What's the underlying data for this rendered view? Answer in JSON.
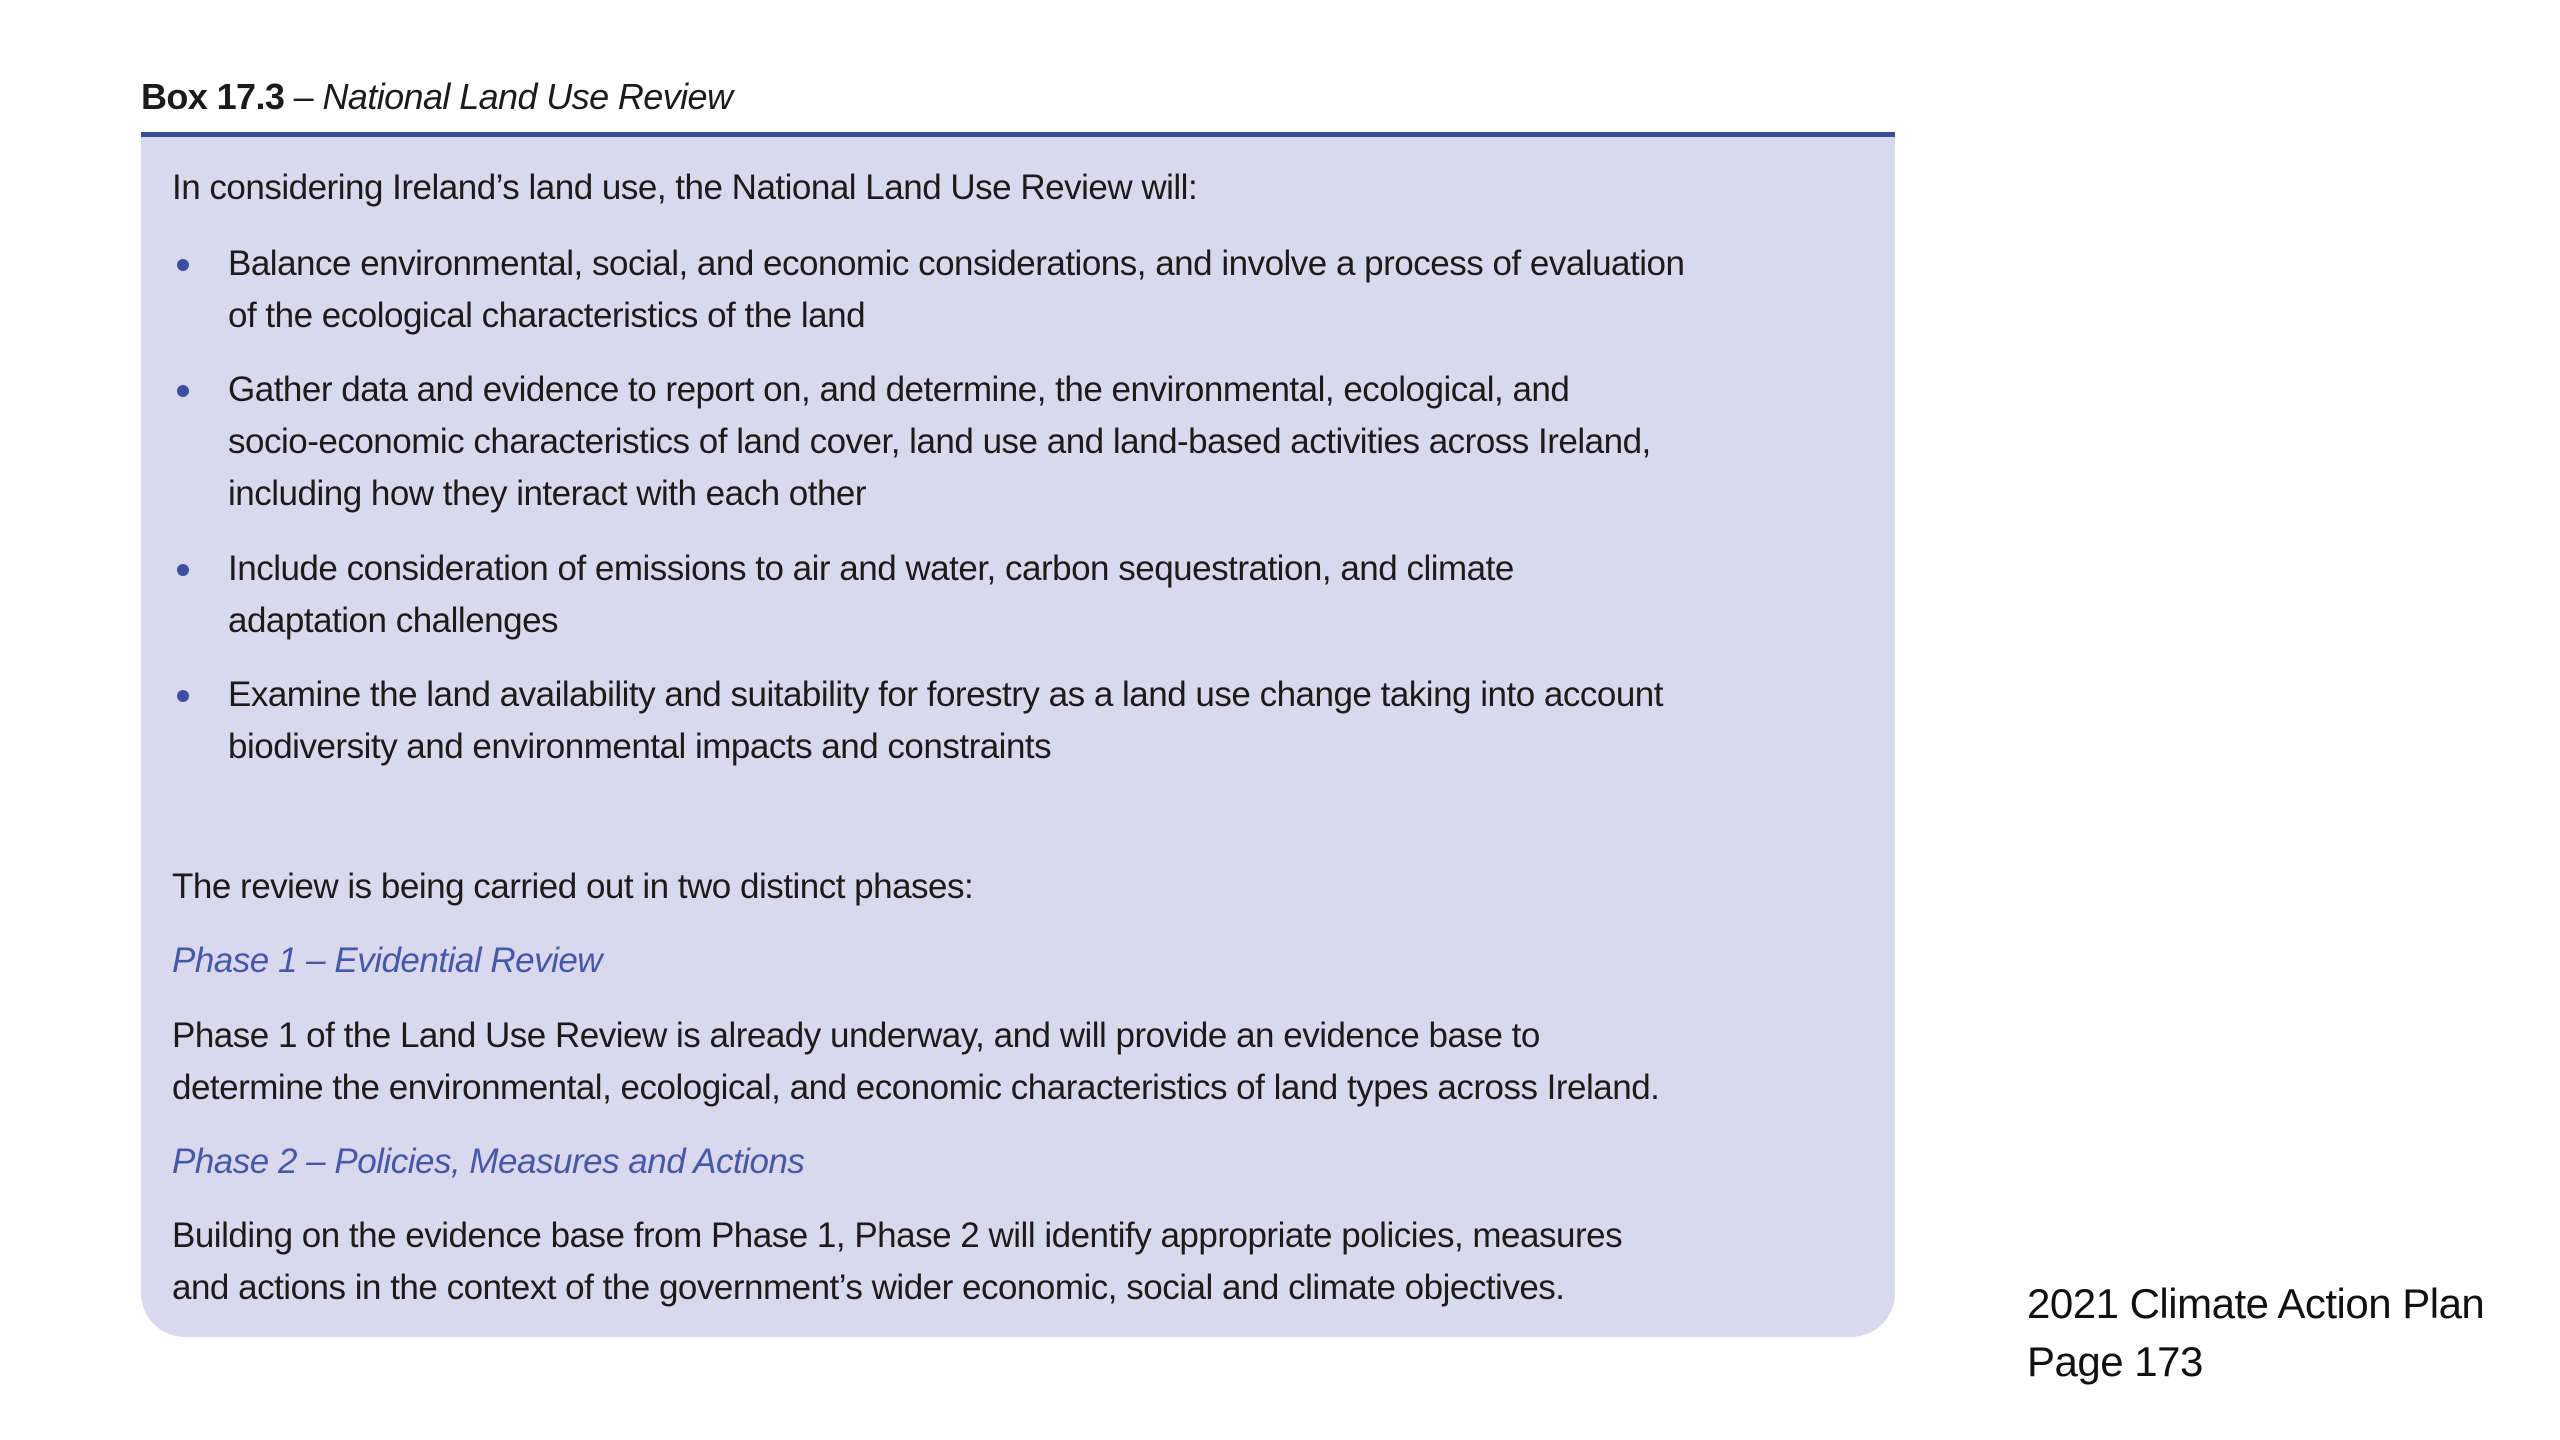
{
  "box": {
    "label": "Box 17.3",
    "separator": " – ",
    "title": "National Land Use Review",
    "intro": "In considering Ireland’s land use, the National Land Use Review will:",
    "bullets": [
      [
        "Balance environmental, social, and economic considerations, and involve a process of evaluation",
        "of the ecological characteristics of the land"
      ],
      [
        "Gather data and evidence to report on, and determine, the environmental, ecological, and",
        "socio-economic characteristics of land cover, land use and land-based activities across Ireland,",
        "including how they interact with each other"
      ],
      [
        "Include consideration of emissions to air and water, carbon sequestration, and climate",
        "adaptation challenges"
      ],
      [
        "Examine the land availability and suitability for forestry as a land use change taking into account",
        "biodiversity and environmental impacts and constraints"
      ]
    ],
    "phases_intro": "The review is being carried out in two distinct phases:",
    "phase1": {
      "heading": "Phase 1 – Evidential Review",
      "text": [
        "Phase 1 of the Land Use Review is already underway, and will provide an evidence base to",
        "determine the environmental, ecological, and economic characteristics of land types across Ireland."
      ]
    },
    "phase2": {
      "heading": "Phase 2 – Policies, Measures and Actions",
      "text": [
        "Building on the evidence base from Phase 1, Phase 2 will identify appropriate policies, measures",
        "and actions in the context of the government’s wider economic, social and climate objectives."
      ]
    }
  },
  "footer": {
    "source": "2021 Climate Action Plan",
    "page": "Page 173"
  },
  "colors": {
    "box_background": "#d9d8ec",
    "accent": "#3a4c9c",
    "phase_heading": "#4658a8"
  }
}
